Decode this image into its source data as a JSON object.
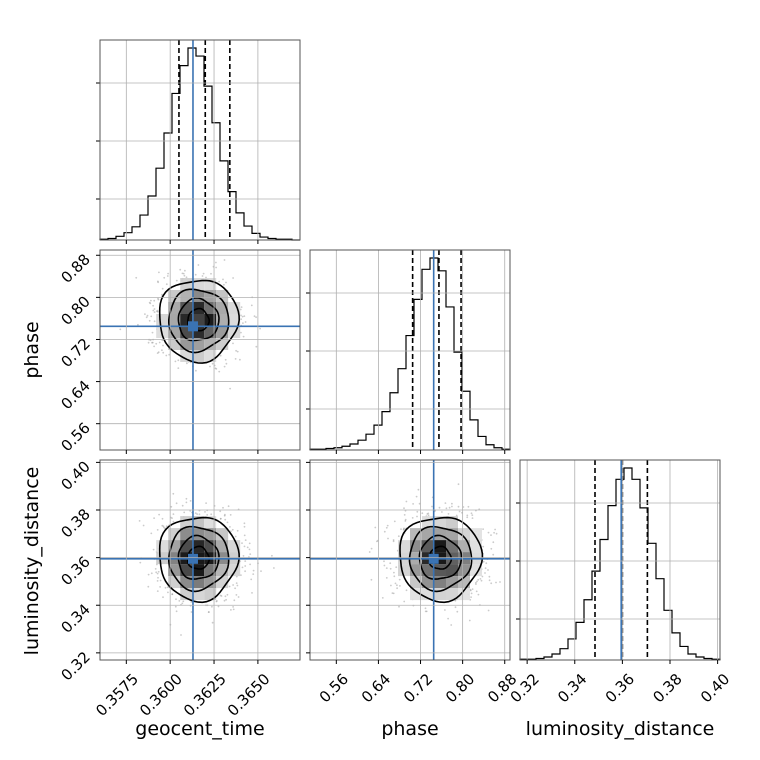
{
  "chart_data": {
    "type": "corner",
    "title": "",
    "grid": true,
    "colors": {
      "truth": "#3a73b3",
      "contour": "#000000",
      "hist": "#000000",
      "points": "#8c8c8c",
      "grid": "#b0b0b0"
    },
    "parameters": [
      {
        "name": "geocent_time",
        "label": "geocent_time",
        "range": [
          0.356,
          0.3674
        ],
        "ticks": [
          "0.3575",
          "0.3600",
          "0.3625",
          "0.3650"
        ],
        "truth": 0.3613,
        "mean": 0.3616,
        "sd": 0.0011,
        "quantiles": [
          0.3605,
          0.362,
          0.3634
        ]
      },
      {
        "name": "phase",
        "label": "phase",
        "range": [
          0.51,
          0.89
        ],
        "ticks": [
          "0.56",
          "0.64",
          "0.72",
          "0.80",
          "0.88"
        ],
        "truth": 0.745,
        "mean": 0.757,
        "sd": 0.038,
        "quantiles": [
          0.705,
          0.755,
          0.797
        ]
      },
      {
        "name": "luminosity_distance",
        "label": "luminosity_distance",
        "range": [
          0.317,
          0.401
        ],
        "ticks": [
          "0.32",
          "0.34",
          "0.36",
          "0.38",
          "0.40"
        ],
        "truth": 0.3595,
        "mean": 0.3598,
        "sd": 0.0086,
        "quantiles": [
          0.3485,
          0.36,
          0.3705
        ]
      }
    ],
    "histograms": [
      {
        "param": "geocent_time",
        "bins": 25,
        "counts": [
          1,
          2,
          5,
          10,
          18,
          34,
          60,
          98,
          146,
          200,
          238,
          262,
          251,
          210,
          160,
          108,
          66,
          37,
          19,
          9,
          4,
          2,
          1,
          1,
          0
        ]
      },
      {
        "param": "phase",
        "bins": 25,
        "counts": [
          1,
          1,
          2,
          3,
          5,
          8,
          13,
          21,
          33,
          51,
          76,
          108,
          152,
          200,
          240,
          255,
          238,
          190,
          130,
          78,
          40,
          18,
          7,
          3,
          1
        ]
      },
      {
        "param": "luminosity_distance",
        "bins": 25,
        "counts": [
          1,
          1,
          2,
          4,
          8,
          15,
          28,
          50,
          80,
          118,
          160,
          205,
          240,
          255,
          240,
          202,
          155,
          108,
          66,
          36,
          18,
          8,
          4,
          2,
          1
        ]
      }
    ],
    "pairs": [
      {
        "x": "geocent_time",
        "y": "phase"
      },
      {
        "x": "geocent_time",
        "y": "luminosity_distance"
      },
      {
        "x": "phase",
        "y": "luminosity_distance"
      }
    ]
  }
}
